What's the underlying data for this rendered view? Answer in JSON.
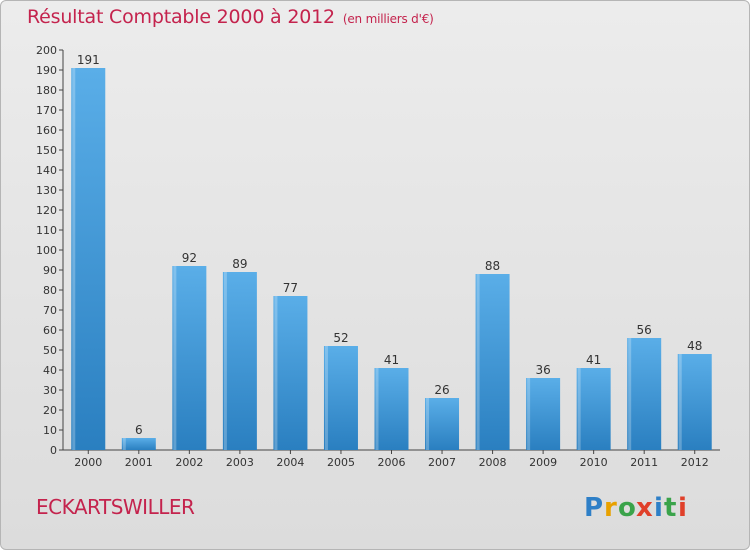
{
  "header": {
    "title": "Résultat Comptable 2000 à 2012",
    "subtitle": "(en milliers d'€)"
  },
  "footer": {
    "commune": "ECKARTSWILLER",
    "logo": {
      "text": "Proxiti",
      "letters": [
        "P",
        "r",
        "o",
        "x",
        "i",
        "t",
        "i"
      ]
    }
  },
  "colors": {
    "title": "#c4234d",
    "bar_top": "#5aaee8",
    "bar_bottom": "#2a7fc0",
    "logo": [
      "#2e7fc7",
      "#e8a100",
      "#3aa34a",
      "#e0402a",
      "#2e7fc7",
      "#3aa34a",
      "#e0402a"
    ]
  },
  "chart_data": {
    "type": "bar",
    "title": "Résultat Comptable 2000 à 2012",
    "subtitle": "(en milliers d'€)",
    "categories": [
      "2000",
      "2001",
      "2002",
      "2003",
      "2004",
      "2005",
      "2006",
      "2007",
      "2008",
      "2009",
      "2010",
      "2011",
      "2012"
    ],
    "values": [
      191,
      6,
      92,
      89,
      77,
      52,
      41,
      26,
      88,
      36,
      41,
      56,
      48
    ],
    "ylim": [
      0,
      200
    ],
    "ytick_step": 10,
    "yticks": [
      "0",
      "10",
      "20",
      "30",
      "40",
      "50",
      "60",
      "70",
      "80",
      "90",
      "100",
      "110",
      "120",
      "130",
      "140",
      "150",
      "160",
      "170",
      "180",
      "190",
      "200"
    ],
    "xlabel": "",
    "ylabel": "",
    "grid": false,
    "legend": "none"
  }
}
